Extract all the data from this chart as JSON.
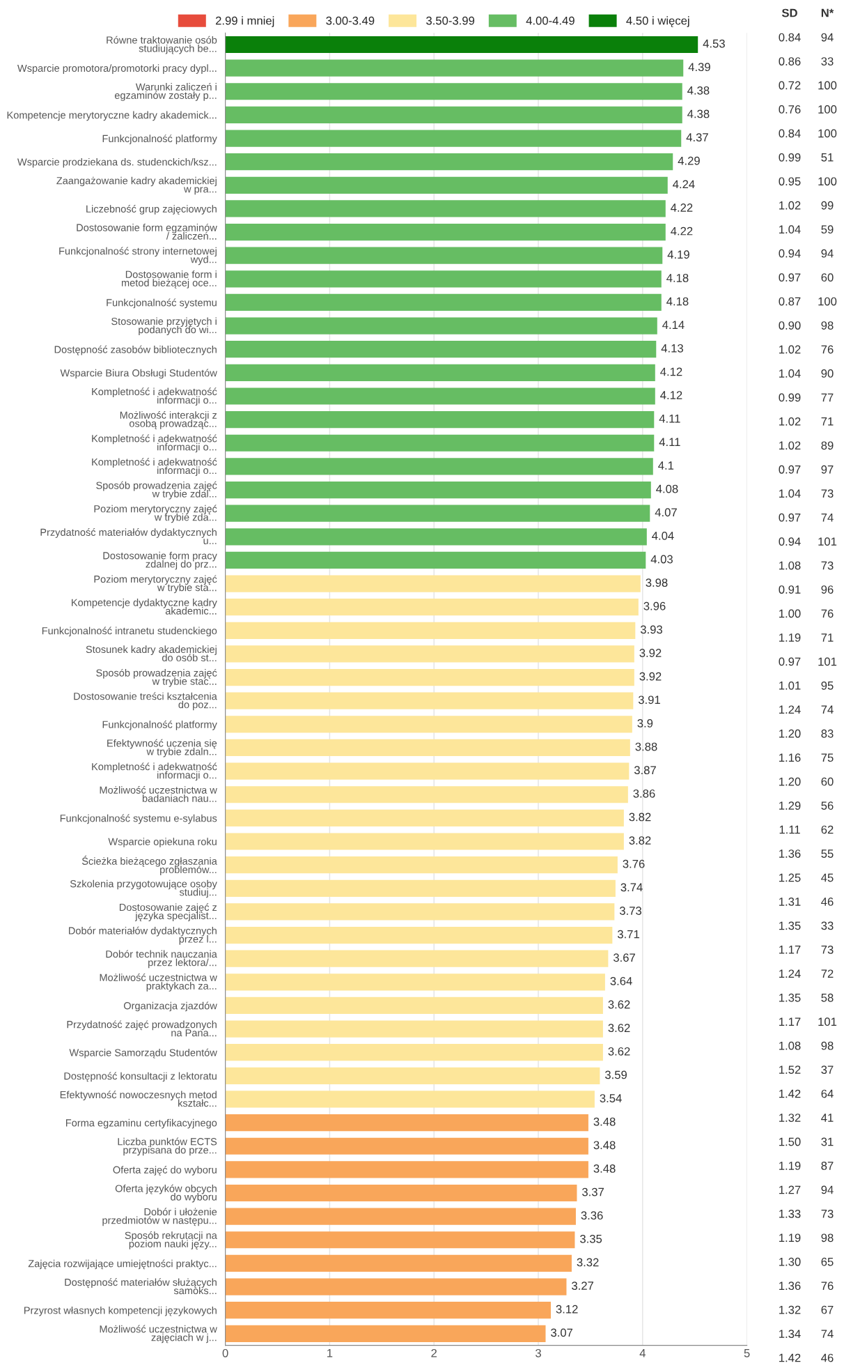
{
  "chart_data": {
    "type": "bar",
    "orientation": "horizontal",
    "categories": [
      "Równe traktowanie osób\nstudiujących be...",
      "Wsparcie promotora/promotorki pracy dypl...",
      "Warunki zaliczeń i\negzaminów zostały p...",
      "Kompetencje merytoryczne kadry akademick...",
      "Funkcjonalność platformy",
      "Wsparcie prodziekana ds. studenckich/ksz...",
      "Zaangażowanie kadry akademickiej\nw pra...",
      "Liczebność grup zajęciowych",
      "Dostosowanie form egzaminów\n/ zaliczeń...",
      "Funkcjonalność strony internetowej\nwyd...",
      "Dostosowanie form i\nmetod bieżącej oce...",
      "Funkcjonalność systemu",
      "Stosowanie przyjętych i\npodanych do wi...",
      "Dostępność zasobów bibliotecznych",
      "Wsparcie Biura Obsługi Studentów",
      "Kompletność i adekwatność\ninformacji o...",
      "Możliwość interakcji z\nosobą prowadząc...",
      "Kompletność i adekwatność\ninformacji o...",
      "Kompletność i adekwatność\ninformacji o...",
      "Sposób prowadzenia zajęć\nw trybie zdal...",
      "Poziom merytoryczny zajęć\nw trybie zda...",
      "Przydatność materiałów dydaktycznych\nu...",
      "Dostosowanie form pracy\nzdalnej do prz...",
      "Poziom merytoryczny zajęć\nw trybie sta...",
      "Kompetencje dydaktyczne kadry\nakademic...",
      "Funkcjonalność intranetu studenckiego",
      "Stosunek kadry akademickiej\ndo osób st...",
      "Sposób prowadzenia zajęć\nw trybie stac...",
      "Dostosowanie treści kształcenia\ndo poz...",
      "Funkcjonalność platformy",
      "Efektywność uczenia się\nw trybie zdaln...",
      "Kompletność i adekwatność\ninformacji o...",
      "Możliwość uczestnictwa w\nbadaniach nau...",
      "Funkcjonalność systemu e-sylabus",
      "Wsparcie opiekuna roku",
      "Ścieżka bieżącego zgłaszania\nproblemów...",
      "Szkolenia przygotowujące osoby\nstudiuj...",
      "Dostosowanie zajęć z\njęzyka specjalist...",
      "Dobór materiałów dydaktycznych\nprzez l...",
      "Dobór technik nauczania\nprzez lektora/...",
      "Możliwość uczestnictwa w\npraktykach za...",
      "Organizacja zjazdów",
      "Przydatność zajęć prowadzonych\nna Pana...",
      "Wsparcie Samorządu Studentów",
      "Dostępność konsultacji z lektoratu",
      "Efektywność nowoczesnych metod\nkształc...",
      "Forma egzaminu certyfikacyjnego",
      "Liczba punktów ECTS\nprzypisana do prze...",
      "Oferta zajęć do wyboru",
      "Oferta języków obcych\ndo wyboru",
      "Dobór i ułożenie\nprzedmiotów w następu...",
      "Sposób rekrutacji na\npoziom nauki języ...",
      "Zajęcia rozwijające umiejętności praktyc...",
      "Dostępność materiałów służących\nsamoks...",
      "Przyrost własnych kompetencji językowych",
      "Możliwość uczestnictwa w\nzajęciach w j..."
    ],
    "series": [
      {
        "name": "2.99 i mniej",
        "color": "#e74c3c",
        "values": [
          null,
          null,
          null,
          null,
          null,
          null,
          null,
          null,
          null,
          null,
          null,
          null,
          null,
          null,
          null,
          null,
          null,
          null,
          null,
          null,
          null,
          null,
          null,
          null,
          null,
          null,
          null,
          null,
          null,
          null,
          null,
          null,
          null,
          null,
          null,
          null,
          null,
          null,
          null,
          null,
          null,
          null,
          null,
          null,
          null,
          null,
          null,
          null,
          null,
          null,
          null,
          null,
          null,
          null,
          null,
          null
        ]
      },
      {
        "name": "3.00-3.49",
        "color": "#f9a65a",
        "values": [
          null,
          null,
          null,
          null,
          null,
          null,
          null,
          null,
          null,
          null,
          null,
          null,
          null,
          null,
          null,
          null,
          null,
          null,
          null,
          null,
          null,
          null,
          null,
          null,
          null,
          null,
          null,
          null,
          null,
          null,
          null,
          null,
          null,
          null,
          null,
          null,
          null,
          null,
          null,
          null,
          null,
          null,
          null,
          null,
          null,
          null,
          3.48,
          3.48,
          3.48,
          3.37,
          3.36,
          3.35,
          3.32,
          3.27,
          3.12,
          3.07
        ]
      },
      {
        "name": "3.50-3.99",
        "color": "#fde69a",
        "values": [
          null,
          null,
          null,
          null,
          null,
          null,
          null,
          null,
          null,
          null,
          null,
          null,
          null,
          null,
          null,
          null,
          null,
          null,
          null,
          null,
          null,
          null,
          null,
          3.98,
          3.96,
          3.93,
          3.92,
          3.92,
          3.91,
          3.9,
          3.88,
          3.87,
          3.86,
          3.82,
          3.82,
          3.76,
          3.74,
          3.73,
          3.71,
          3.67,
          3.64,
          3.62,
          3.62,
          3.62,
          3.59,
          3.54,
          null,
          null,
          null,
          null,
          null,
          null,
          null,
          null,
          null,
          null
        ]
      },
      {
        "name": "4.00-4.49",
        "color": "#66bd63",
        "values": [
          null,
          4.39,
          4.38,
          4.38,
          4.37,
          4.29,
          4.24,
          4.22,
          4.22,
          4.19,
          4.18,
          4.18,
          4.14,
          4.13,
          4.12,
          4.12,
          4.11,
          4.11,
          4.1,
          4.08,
          4.07,
          4.04,
          4.03,
          null,
          null,
          null,
          null,
          null,
          null,
          null,
          null,
          null,
          null,
          null,
          null,
          null,
          null,
          null,
          null,
          null,
          null,
          null,
          null,
          null,
          null,
          null,
          null,
          null,
          null,
          null,
          null,
          null,
          null,
          null,
          null,
          null
        ]
      },
      {
        "name": "4.50 i więcej",
        "color": "#0a800a",
        "values": [
          4.53,
          null,
          null,
          null,
          null,
          null,
          null,
          null,
          null,
          null,
          null,
          null,
          null,
          null,
          null,
          null,
          null,
          null,
          null,
          null,
          null,
          null,
          null,
          null,
          null,
          null,
          null,
          null,
          null,
          null,
          null,
          null,
          null,
          null,
          null,
          null,
          null,
          null,
          null,
          null,
          null,
          null,
          null,
          null,
          null,
          null,
          null,
          null,
          null,
          null,
          null,
          null,
          null,
          null,
          null,
          null
        ]
      }
    ],
    "xlim": [
      0,
      5
    ],
    "xticks": [
      0,
      1,
      2,
      3,
      4,
      5
    ],
    "grid": "x",
    "legend": "top",
    "data_labels": true,
    "annotations": [
      "SD",
      "N*",
      "0.84",
      "94",
      "0.86",
      "33",
      "0.72",
      "100",
      "0.76",
      "100",
      "0.84",
      "100",
      "0.99",
      "51",
      "0.95",
      "100",
      "1.02",
      "99",
      "1.04",
      "59",
      "0.94",
      "94",
      "0.97",
      "60",
      "0.87",
      "100",
      "0.90",
      "98",
      "1.02",
      "76",
      "1.04",
      "90",
      "0.99",
      "77",
      "1.02",
      "71",
      "1.02",
      "89",
      "0.97",
      "97",
      "1.04",
      "73",
      "0.97",
      "74",
      "0.94",
      "101",
      "1.08",
      "73",
      "0.91",
      "96",
      "1.00",
      "76",
      "1.19",
      "71",
      "0.97",
      "101",
      "1.01",
      "95",
      "1.24",
      "74",
      "1.20",
      "83",
      "1.16",
      "75",
      "1.20",
      "60",
      "1.29",
      "56",
      "1.11",
      "62",
      "1.36",
      "55",
      "1.25",
      "45",
      "1.31",
      "46",
      "1.35",
      "33",
      "1.17",
      "73",
      "1.24",
      "72",
      "1.35",
      "58",
      "1.17",
      "101",
      "1.08",
      "98",
      "1.52",
      "37",
      "1.42",
      "64",
      "1.32",
      "41",
      "1.50",
      "31",
      "1.19",
      "87",
      "1.27",
      "94",
      "1.33",
      "73",
      "1.19",
      "98",
      "1.30",
      "65",
      "1.36",
      "76",
      "1.32",
      "67",
      "1.34",
      "74",
      "1.42",
      "46"
    ]
  }
}
